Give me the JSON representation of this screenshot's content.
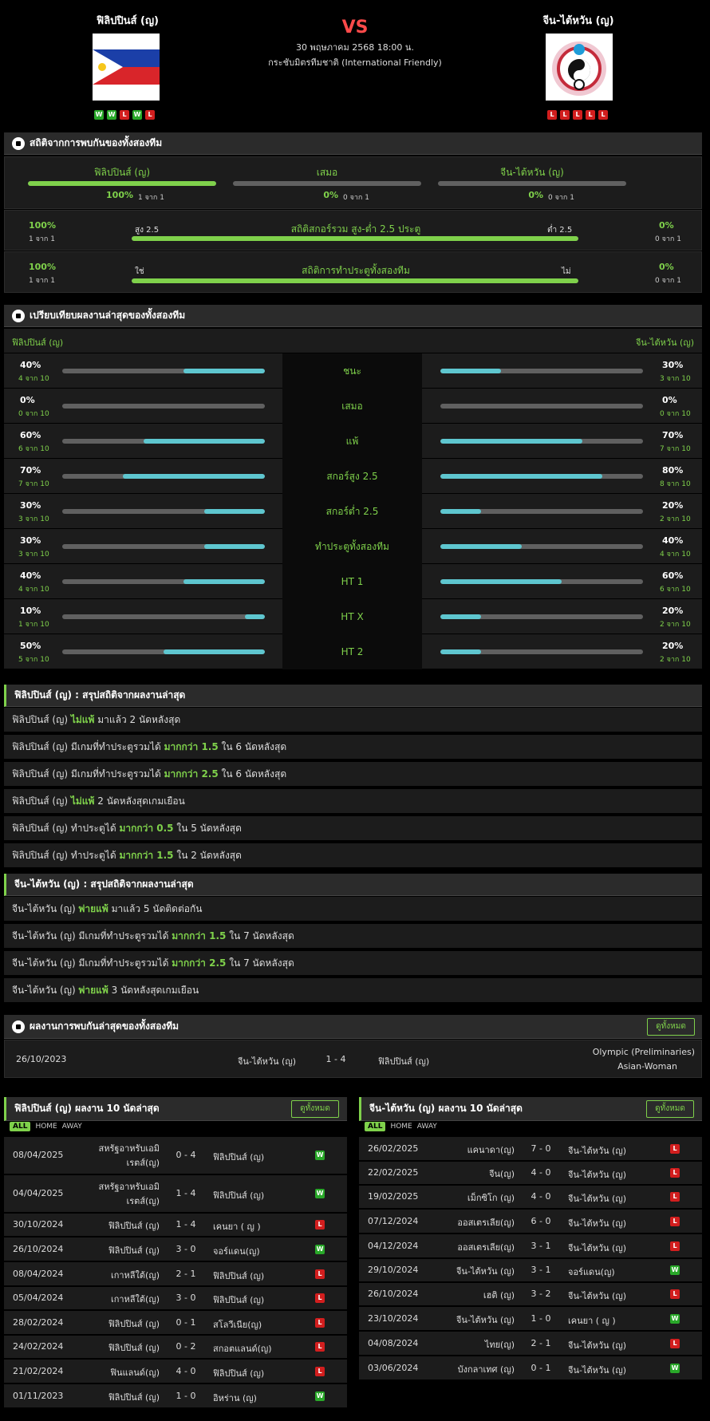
{
  "header": {
    "home": "ฟิลิปปินส์ (ญ)",
    "away": "จีน-ไต้หวัน (ญ)",
    "vs": "VS",
    "date": "30 พฤษภาคม 2568 18:00 น.",
    "competition": "กระชับมิตรทีมชาติ (International Friendly)",
    "home_form": [
      "W",
      "W",
      "L",
      "W",
      "L"
    ],
    "away_form": [
      "L",
      "L",
      "L",
      "L",
      "L"
    ]
  },
  "h2h": {
    "title": "สถิติจากการพบกันของทั้งสองทีม",
    "cols": [
      {
        "label": "ฟิลิปปินส์ (ญ)",
        "pct": "100%",
        "sub": "1 จาก 1",
        "fill": 1.0
      },
      {
        "label": "เสมอ",
        "pct": "0%",
        "sub": "0 จาก 1",
        "fill": 0
      },
      {
        "label": "จีน-ไต้หวัน (ญ)",
        "pct": "0%",
        "sub": "0 จาก 1",
        "fill": 0
      }
    ],
    "ou": {
      "title": "สถิติสกอร์รวม สูง-ต่ำ 2.5 ประตู",
      "left": "สูง 2.5",
      "right": "ต่ำ 2.5",
      "lp": "100%",
      "ls": "1 จาก 1",
      "rp": "0%",
      "rs": "0 จาก 1",
      "fill": 1.0
    },
    "btts": {
      "title": "สถิติการทำประตูทั้งสองทีม",
      "left": "ใช่",
      "right": "ไม่",
      "lp": "100%",
      "ls": "1 จาก 1",
      "rp": "0%",
      "rs": "0 จาก 1",
      "fill": 1.0
    }
  },
  "compare": {
    "title": "เปรียบเทียบผลงานล่าสุดของทั้งสองทีม",
    "home": "ฟิลิปปินส์ (ญ)",
    "away": "จีน-ไต้หวัน (ญ)",
    "rows": [
      {
        "label": "ชนะ",
        "hp": "40%",
        "hs": "4 จาก 10",
        "hf": 0.4,
        "ap": "30%",
        "as": "3 จาก 10",
        "af": 0.3
      },
      {
        "label": "เสมอ",
        "hp": "0%",
        "hs": "0 จาก 10",
        "hf": 0,
        "ap": "0%",
        "as": "0 จาก 10",
        "af": 0
      },
      {
        "label": "แพ้",
        "hp": "60%",
        "hs": "6 จาก 10",
        "hf": 0.6,
        "ap": "70%",
        "as": "7 จาก 10",
        "af": 0.7
      },
      {
        "label": "สกอร์สูง 2.5",
        "hp": "70%",
        "hs": "7 จาก 10",
        "hf": 0.7,
        "ap": "80%",
        "as": "8 จาก 10",
        "af": 0.8
      },
      {
        "label": "สกอร์ต่ำ 2.5",
        "hp": "30%",
        "hs": "3 จาก 10",
        "hf": 0.3,
        "ap": "20%",
        "as": "2 จาก 10",
        "af": 0.2
      },
      {
        "label": "ทำประตูทั้งสองทีม",
        "hp": "30%",
        "hs": "3 จาก 10",
        "hf": 0.3,
        "ap": "40%",
        "as": "4 จาก 10",
        "af": 0.4
      },
      {
        "label": "HT 1",
        "hp": "40%",
        "hs": "4 จาก 10",
        "hf": 0.4,
        "ap": "60%",
        "as": "6 จาก 10",
        "af": 0.6
      },
      {
        "label": "HT X",
        "hp": "10%",
        "hs": "1 จาก 10",
        "hf": 0.1,
        "ap": "20%",
        "as": "2 จาก 10",
        "af": 0.2
      },
      {
        "label": "HT 2",
        "hp": "50%",
        "hs": "5 จาก 10",
        "hf": 0.5,
        "ap": "20%",
        "as": "2 จาก 10",
        "af": 0.2
      }
    ]
  },
  "home_facts": {
    "title": "ฟิลิปปินส์ (ญ) : สรุปสถิติจากผลงานล่าสุด",
    "items": [
      {
        "a": "ฟิลิปปินส์ (ญ)",
        "b": "ไม่แพ้",
        "c": "มาแล้ว 2 นัดหลังสุด"
      },
      {
        "a": "ฟิลิปปินส์ (ญ) มีเกมที่ทำประตูรวมได้",
        "b": "มากกว่า 1.5",
        "c": "ใน 6 นัดหลังสุด"
      },
      {
        "a": "ฟิลิปปินส์ (ญ) มีเกมที่ทำประตูรวมได้",
        "b": "มากกว่า 2.5",
        "c": "ใน 6 นัดหลังสุด"
      },
      {
        "a": "ฟิลิปปินส์ (ญ)",
        "b": "ไม่แพ้",
        "c": "2 นัดหลังสุดเกมเยือน"
      },
      {
        "a": "ฟิลิปปินส์ (ญ) ทำประตูได้",
        "b": "มากกว่า 0.5",
        "c": "ใน 5 นัดหลังสุด"
      },
      {
        "a": "ฟิลิปปินส์ (ญ) ทำประตูได้",
        "b": "มากกว่า 1.5",
        "c": "ใน 2 นัดหลังสุด"
      }
    ]
  },
  "away_facts": {
    "title": "จีน-ไต้หวัน (ญ) : สรุปสถิติจากผลงานล่าสุด",
    "items": [
      {
        "a": "จีน-ไต้หวัน (ญ)",
        "b": "พ่ายแพ้",
        "c": "มาแล้ว 5 นัดติดต่อกัน"
      },
      {
        "a": "จีน-ไต้หวัน (ญ) มีเกมที่ทำประตูรวมได้",
        "b": "มากกว่า 1.5",
        "c": "ใน 7 นัดหลังสุด"
      },
      {
        "a": "จีน-ไต้หวัน (ญ) มีเกมที่ทำประตูรวมได้",
        "b": "มากกว่า 2.5",
        "c": "ใน 7 นัดหลังสุด"
      },
      {
        "a": "จีน-ไต้หวัน (ญ)",
        "b": "พ่ายแพ้",
        "c": "3 นัดหลังสุดเกมเยือน"
      }
    ]
  },
  "h2h_matches": {
    "title": "ผลงานการพบกันล่าสุดของทั้งสองทีม",
    "see_all": "ดูทั้งหมด",
    "rows": [
      {
        "date": "26/10/2023",
        "home": "จีน-ไต้หวัน (ญ)",
        "score": "1 - 4",
        "away": "ฟิลิปปินส์ (ญ)",
        "comp1": "Olympic (Preliminaries)",
        "comp2": "Asian-Woman"
      }
    ]
  },
  "filters": {
    "all": "ALL",
    "home": "HOME",
    "away": "AWAY"
  },
  "home_last": {
    "title": "ฟิลิปปินส์ (ญ) ผลงาน 10 นัดล่าสุด",
    "see_all": "ดูทั้งหมด",
    "rows": [
      {
        "date": "08/04/2025",
        "home": "สหรัฐอาหรับเอมิเรตส์(ญ)",
        "score": "0 - 4",
        "away": "ฟิลิปปินส์ (ญ)",
        "r": "W"
      },
      {
        "date": "04/04/2025",
        "home": "สหรัฐอาหรับเอมิเรตส์(ญ)",
        "score": "1 - 4",
        "away": "ฟิลิปปินส์ (ญ)",
        "r": "W"
      },
      {
        "date": "30/10/2024",
        "home": "ฟิลิปปินส์ (ญ)",
        "score": "1 - 4",
        "away": "เคนยา ( ญ )",
        "r": "L"
      },
      {
        "date": "26/10/2024",
        "home": "ฟิลิปปินส์ (ญ)",
        "score": "3 - 0",
        "away": "จอร์แดน(ญ)",
        "r": "W"
      },
      {
        "date": "08/04/2024",
        "home": "เกาหลีใต้(ญ)",
        "score": "2 - 1",
        "away": "ฟิลิปปินส์ (ญ)",
        "r": "L"
      },
      {
        "date": "05/04/2024",
        "home": "เกาหลีใต้(ญ)",
        "score": "3 - 0",
        "away": "ฟิลิปปินส์ (ญ)",
        "r": "L"
      },
      {
        "date": "28/02/2024",
        "home": "ฟิลิปปินส์ (ญ)",
        "score": "0 - 1",
        "away": "สโลวีเนีย(ญ)",
        "r": "L"
      },
      {
        "date": "24/02/2024",
        "home": "ฟิลิปปินส์ (ญ)",
        "score": "0 - 2",
        "away": "สกอตแลนด์(ญ)",
        "r": "L"
      },
      {
        "date": "21/02/2024",
        "home": "ฟินแลนด์(ญ)",
        "score": "4 - 0",
        "away": "ฟิลิปปินส์ (ญ)",
        "r": "L"
      },
      {
        "date": "01/11/2023",
        "home": "ฟิลิปปินส์ (ญ)",
        "score": "1 - 0",
        "away": "อิหร่าน (ญ)",
        "r": "W"
      }
    ]
  },
  "away_last": {
    "title": "จีน-ไต้หวัน (ญ) ผลงาน 10 นัดล่าสุด",
    "see_all": "ดูทั้งหมด",
    "rows": [
      {
        "date": "26/02/2025",
        "home": "แคนาดา(ญ)",
        "score": "7 - 0",
        "away": "จีน-ไต้หวัน (ญ)",
        "r": "L"
      },
      {
        "date": "22/02/2025",
        "home": "จีน(ญ)",
        "score": "4 - 0",
        "away": "จีน-ไต้หวัน (ญ)",
        "r": "L"
      },
      {
        "date": "19/02/2025",
        "home": "เม็กซิโก (ญ)",
        "score": "4 - 0",
        "away": "จีน-ไต้หวัน (ญ)",
        "r": "L"
      },
      {
        "date": "07/12/2024",
        "home": "ออสเตรเลีย(ญ)",
        "score": "6 - 0",
        "away": "จีน-ไต้หวัน (ญ)",
        "r": "L"
      },
      {
        "date": "04/12/2024",
        "home": "ออสเตรเลีย(ญ)",
        "score": "3 - 1",
        "away": "จีน-ไต้หวัน (ญ)",
        "r": "L"
      },
      {
        "date": "29/10/2024",
        "home": "จีน-ไต้หวัน (ญ)",
        "score": "3 - 1",
        "away": "จอร์แดน(ญ)",
        "r": "W"
      },
      {
        "date": "26/10/2024",
        "home": "เฮติ (ญ)",
        "score": "3 - 2",
        "away": "จีน-ไต้หวัน (ญ)",
        "r": "L"
      },
      {
        "date": "23/10/2024",
        "home": "จีน-ไต้หวัน (ญ)",
        "score": "1 - 0",
        "away": "เคนยา ( ญ )",
        "r": "W"
      },
      {
        "date": "04/08/2024",
        "home": "ไทย(ญ)",
        "score": "2 - 1",
        "away": "จีน-ไต้หวัน (ญ)",
        "r": "L"
      },
      {
        "date": "03/06/2024",
        "home": "บังกลาเทศ (ญ)",
        "score": "0 - 1",
        "away": "จีน-ไต้หวัน (ญ)",
        "r": "W"
      }
    ]
  },
  "colors": {
    "green": "#7fd14b",
    "cyan": "#5ec6cf",
    "win": "#29a829",
    "loss": "#d21e1e"
  }
}
